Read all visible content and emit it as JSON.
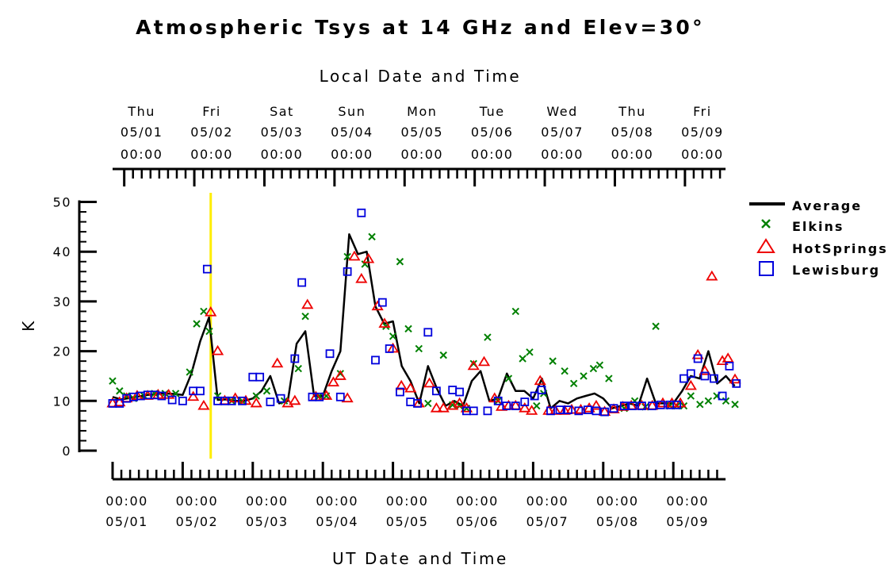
{
  "chart_data": {
    "type": "line",
    "title": "Atmospheric Tsys at 14 GHz and Elev=30°",
    "top_axis_label": "Local Date and Time",
    "xlabel": "UT Date and Time",
    "ylabel": "K",
    "ylim": [
      0,
      50
    ],
    "y_ticks": [
      0,
      10,
      20,
      30,
      40,
      50
    ],
    "x_range_days": [
      0.0,
      8.7
    ],
    "x_days_ref": "day 0 = 05/01 00:00 UT",
    "top_axis_offset_days": 0.166,
    "bottom_ticks": [
      {
        "time": "00:00",
        "date": "05/01"
      },
      {
        "time": "00:00",
        "date": "05/02"
      },
      {
        "time": "00:00",
        "date": "05/03"
      },
      {
        "time": "00:00",
        "date": "05/04"
      },
      {
        "time": "00:00",
        "date": "05/05"
      },
      {
        "time": "00:00",
        "date": "05/06"
      },
      {
        "time": "00:00",
        "date": "05/07"
      },
      {
        "time": "00:00",
        "date": "05/08"
      },
      {
        "time": "00:00",
        "date": "05/09"
      }
    ],
    "top_ticks": [
      {
        "day": "Thu",
        "date": "05/01",
        "time": "00:00"
      },
      {
        "day": "Fri",
        "date": "05/02",
        "time": "00:00"
      },
      {
        "day": "Sat",
        "date": "05/03",
        "time": "00:00"
      },
      {
        "day": "Sun",
        "date": "05/04",
        "time": "00:00"
      },
      {
        "day": "Mon",
        "date": "05/05",
        "time": "00:00"
      },
      {
        "day": "Tue",
        "date": "05/06",
        "time": "00:00"
      },
      {
        "day": "Wed",
        "date": "05/07",
        "time": "00:00"
      },
      {
        "day": "Thu",
        "date": "05/08",
        "time": "00:00"
      },
      {
        "day": "Fri",
        "date": "05/09",
        "time": "00:00"
      }
    ],
    "marker_line": {
      "x_day": 1.4,
      "color": "#ffee00"
    },
    "legend": {
      "placement": "right"
    },
    "series": [
      {
        "name": "Average",
        "style": "line",
        "color": "#000000",
        "points": [
          [
            0.0,
            10.8
          ],
          [
            0.125,
            10.3
          ],
          [
            0.25,
            10.6
          ],
          [
            0.375,
            10.9
          ],
          [
            0.5,
            11.2
          ],
          [
            0.625,
            11.4
          ],
          [
            0.75,
            11.5
          ],
          [
            0.875,
            11.4
          ],
          [
            1.0,
            11.2
          ],
          [
            1.125,
            15.5
          ],
          [
            1.25,
            22.0
          ],
          [
            1.375,
            26.8
          ],
          [
            1.5,
            10.2
          ],
          [
            1.625,
            10.3
          ],
          [
            1.75,
            10.0
          ],
          [
            1.875,
            10.0
          ],
          [
            2.0,
            10.5
          ],
          [
            2.125,
            12.0
          ],
          [
            2.25,
            15.0
          ],
          [
            2.375,
            9.5
          ],
          [
            2.5,
            10.0
          ],
          [
            2.625,
            21.5
          ],
          [
            2.75,
            24.0
          ],
          [
            2.875,
            11.0
          ],
          [
            3.0,
            11.0
          ],
          [
            3.125,
            16.0
          ],
          [
            3.25,
            20.0
          ],
          [
            3.375,
            43.5
          ],
          [
            3.5,
            39.5
          ],
          [
            3.625,
            40.0
          ],
          [
            3.75,
            29.0
          ],
          [
            3.875,
            25.5
          ],
          [
            4.0,
            26.0
          ],
          [
            4.125,
            17.0
          ],
          [
            4.25,
            14.0
          ],
          [
            4.375,
            9.5
          ],
          [
            4.5,
            17.0
          ],
          [
            4.625,
            12.5
          ],
          [
            4.75,
            9.0
          ],
          [
            4.875,
            10.0
          ],
          [
            5.0,
            9.0
          ],
          [
            5.125,
            14.0
          ],
          [
            5.25,
            16.0
          ],
          [
            5.375,
            10.0
          ],
          [
            5.5,
            10.5
          ],
          [
            5.625,
            15.5
          ],
          [
            5.75,
            12.0
          ],
          [
            5.875,
            12.0
          ],
          [
            6.0,
            10.5
          ],
          [
            6.125,
            14.5
          ],
          [
            6.25,
            8.5
          ],
          [
            6.375,
            10.0
          ],
          [
            6.5,
            9.5
          ],
          [
            6.625,
            10.5
          ],
          [
            6.75,
            11.0
          ],
          [
            6.875,
            11.5
          ],
          [
            7.0,
            10.5
          ],
          [
            7.125,
            8.5
          ],
          [
            7.25,
            9.0
          ],
          [
            7.375,
            9.5
          ],
          [
            7.5,
            9.0
          ],
          [
            7.625,
            14.5
          ],
          [
            7.75,
            9.5
          ],
          [
            7.875,
            9.5
          ],
          [
            8.0,
            9.5
          ],
          [
            8.125,
            12.0
          ],
          [
            8.25,
            15.0
          ],
          [
            8.375,
            14.5
          ],
          [
            8.5,
            20.0
          ],
          [
            8.625,
            13.5
          ],
          [
            8.75,
            15.0
          ],
          [
            8.875,
            13.0
          ]
        ]
      },
      {
        "name": "Elkins",
        "style": "x",
        "color": "#008000",
        "points": [
          [
            0.0,
            14.0
          ],
          [
            0.1,
            12.0
          ],
          [
            0.2,
            11.0
          ],
          [
            0.3,
            10.5
          ],
          [
            0.45,
            11.0
          ],
          [
            0.6,
            11.5
          ],
          [
            0.75,
            11.5
          ],
          [
            0.9,
            11.5
          ],
          [
            1.1,
            15.8
          ],
          [
            1.2,
            25.5
          ],
          [
            1.3,
            28.0
          ],
          [
            1.38,
            24.0
          ],
          [
            1.5,
            11.0
          ],
          [
            1.7,
            10.0
          ],
          [
            1.85,
            10.0
          ],
          [
            2.05,
            11.0
          ],
          [
            2.2,
            12.0
          ],
          [
            2.45,
            10.0
          ],
          [
            2.65,
            16.5
          ],
          [
            2.75,
            27.0
          ],
          [
            2.95,
            11.0
          ],
          [
            3.05,
            11.0
          ],
          [
            3.25,
            15.5
          ],
          [
            3.35,
            39.0
          ],
          [
            3.6,
            37.5
          ],
          [
            3.7,
            43.0
          ],
          [
            3.9,
            25.0
          ],
          [
            4.0,
            23.0
          ],
          [
            4.1,
            38.0
          ],
          [
            4.22,
            24.5
          ],
          [
            4.37,
            20.5
          ],
          [
            4.5,
            9.5
          ],
          [
            4.72,
            19.2
          ],
          [
            4.85,
            9.2
          ],
          [
            4.95,
            9.0
          ],
          [
            5.05,
            8.5
          ],
          [
            5.15,
            17.5
          ],
          [
            5.35,
            22.8
          ],
          [
            5.5,
            10.0
          ],
          [
            5.65,
            14.5
          ],
          [
            5.75,
            28.0
          ],
          [
            5.85,
            18.5
          ],
          [
            5.95,
            19.8
          ],
          [
            6.05,
            9.0
          ],
          [
            6.15,
            11.5
          ],
          [
            6.28,
            18.0
          ],
          [
            6.45,
            16.0
          ],
          [
            6.58,
            13.5
          ],
          [
            6.72,
            15.0
          ],
          [
            6.86,
            16.5
          ],
          [
            6.95,
            17.2
          ],
          [
            7.08,
            14.5
          ],
          [
            7.3,
            8.5
          ],
          [
            7.45,
            10.0
          ],
          [
            7.6,
            8.8
          ],
          [
            7.75,
            25.0
          ],
          [
            7.95,
            9.0
          ],
          [
            8.05,
            9.0
          ],
          [
            8.15,
            9.0
          ],
          [
            8.25,
            11.0
          ],
          [
            8.38,
            9.3
          ],
          [
            8.5,
            10.0
          ],
          [
            8.62,
            11.0
          ],
          [
            8.75,
            10.0
          ],
          [
            8.88,
            9.3
          ]
        ]
      },
      {
        "name": "HotSprings",
        "style": "triangle",
        "color": "#ee0000",
        "points": [
          [
            0.0,
            9.5
          ],
          [
            0.1,
            9.7
          ],
          [
            0.2,
            10.5
          ],
          [
            0.35,
            11.0
          ],
          [
            0.5,
            11.0
          ],
          [
            0.65,
            11.2
          ],
          [
            0.8,
            11.2
          ],
          [
            1.15,
            10.8
          ],
          [
            1.3,
            9.0
          ],
          [
            1.4,
            27.8
          ],
          [
            1.5,
            20.0
          ],
          [
            1.6,
            10.0
          ],
          [
            1.75,
            10.5
          ],
          [
            1.9,
            10.0
          ],
          [
            2.05,
            9.5
          ],
          [
            2.35,
            17.5
          ],
          [
            2.5,
            9.5
          ],
          [
            2.6,
            10.0
          ],
          [
            2.78,
            29.3
          ],
          [
            2.9,
            10.8
          ],
          [
            3.05,
            11.0
          ],
          [
            3.15,
            13.7
          ],
          [
            3.25,
            15.0
          ],
          [
            3.35,
            10.5
          ],
          [
            3.45,
            39.0
          ],
          [
            3.55,
            34.5
          ],
          [
            3.65,
            38.5
          ],
          [
            3.78,
            29.0
          ],
          [
            3.88,
            25.5
          ],
          [
            4.0,
            20.5
          ],
          [
            4.12,
            13.0
          ],
          [
            4.25,
            12.5
          ],
          [
            4.37,
            9.5
          ],
          [
            4.52,
            13.5
          ],
          [
            4.62,
            8.5
          ],
          [
            4.72,
            8.5
          ],
          [
            4.85,
            9.0
          ],
          [
            4.95,
            9.5
          ],
          [
            5.05,
            8.5
          ],
          [
            5.15,
            17.0
          ],
          [
            5.3,
            17.8
          ],
          [
            5.45,
            10.5
          ],
          [
            5.55,
            8.8
          ],
          [
            5.65,
            9.0
          ],
          [
            5.75,
            9.0
          ],
          [
            5.88,
            8.5
          ],
          [
            5.98,
            8.0
          ],
          [
            6.1,
            14.0
          ],
          [
            6.22,
            8.0
          ],
          [
            6.32,
            8.0
          ],
          [
            6.45,
            8.0
          ],
          [
            6.55,
            8.2
          ],
          [
            6.68,
            8.2
          ],
          [
            6.8,
            8.5
          ],
          [
            6.9,
            9.0
          ],
          [
            7.02,
            7.8
          ],
          [
            7.15,
            8.3
          ],
          [
            7.28,
            8.8
          ],
          [
            7.4,
            9.0
          ],
          [
            7.55,
            9.0
          ],
          [
            7.7,
            9.0
          ],
          [
            7.85,
            9.5
          ],
          [
            7.98,
            9.5
          ],
          [
            8.1,
            9.5
          ],
          [
            8.25,
            13.0
          ],
          [
            8.35,
            19.2
          ],
          [
            8.45,
            16.0
          ],
          [
            8.55,
            35.0
          ],
          [
            8.7,
            18.0
          ],
          [
            8.78,
            18.5
          ],
          [
            8.88,
            14.3
          ]
        ]
      },
      {
        "name": "Lewisburg",
        "style": "square",
        "color": "#0000dd",
        "points": [
          [
            0.0,
            9.5
          ],
          [
            0.1,
            9.5
          ],
          [
            0.2,
            10.5
          ],
          [
            0.3,
            10.8
          ],
          [
            0.4,
            11.0
          ],
          [
            0.5,
            11.2
          ],
          [
            0.6,
            11.2
          ],
          [
            0.7,
            11.0
          ],
          [
            0.85,
            10.2
          ],
          [
            1.0,
            10.0
          ],
          [
            1.15,
            12.0
          ],
          [
            1.25,
            12.0
          ],
          [
            1.35,
            36.5
          ],
          [
            1.5,
            10.0
          ],
          [
            1.6,
            10.0
          ],
          [
            1.7,
            10.0
          ],
          [
            1.85,
            10.0
          ],
          [
            2.0,
            14.8
          ],
          [
            2.1,
            14.8
          ],
          [
            2.25,
            9.8
          ],
          [
            2.4,
            10.5
          ],
          [
            2.6,
            18.5
          ],
          [
            2.7,
            33.8
          ],
          [
            2.85,
            10.8
          ],
          [
            2.95,
            10.8
          ],
          [
            3.1,
            19.5
          ],
          [
            3.25,
            10.8
          ],
          [
            3.35,
            36.0
          ],
          [
            3.55,
            47.8
          ],
          [
            3.75,
            18.2
          ],
          [
            3.85,
            29.8
          ],
          [
            3.95,
            20.5
          ],
          [
            4.1,
            11.8
          ],
          [
            4.25,
            9.8
          ],
          [
            4.35,
            9.5
          ],
          [
            4.5,
            23.8
          ],
          [
            4.62,
            12.0
          ],
          [
            4.85,
            12.2
          ],
          [
            4.95,
            11.8
          ],
          [
            5.05,
            8.0
          ],
          [
            5.15,
            8.0
          ],
          [
            5.35,
            8.0
          ],
          [
            5.5,
            10.0
          ],
          [
            5.62,
            9.0
          ],
          [
            5.75,
            9.0
          ],
          [
            5.88,
            9.8
          ],
          [
            6.02,
            11.0
          ],
          [
            6.12,
            12.2
          ],
          [
            6.25,
            8.0
          ],
          [
            6.38,
            8.2
          ],
          [
            6.5,
            8.2
          ],
          [
            6.65,
            8.0
          ],
          [
            6.78,
            8.2
          ],
          [
            6.9,
            8.0
          ],
          [
            7.02,
            7.8
          ],
          [
            7.15,
            8.5
          ],
          [
            7.3,
            9.0
          ],
          [
            7.42,
            9.0
          ],
          [
            7.55,
            9.0
          ],
          [
            7.7,
            9.0
          ],
          [
            7.82,
            9.2
          ],
          [
            7.95,
            9.2
          ],
          [
            8.05,
            9.2
          ],
          [
            8.15,
            14.5
          ],
          [
            8.25,
            15.5
          ],
          [
            8.35,
            18.5
          ],
          [
            8.45,
            15.0
          ],
          [
            8.58,
            14.5
          ],
          [
            8.7,
            11.0
          ],
          [
            8.8,
            17.0
          ],
          [
            8.9,
            13.5
          ]
        ]
      }
    ]
  }
}
